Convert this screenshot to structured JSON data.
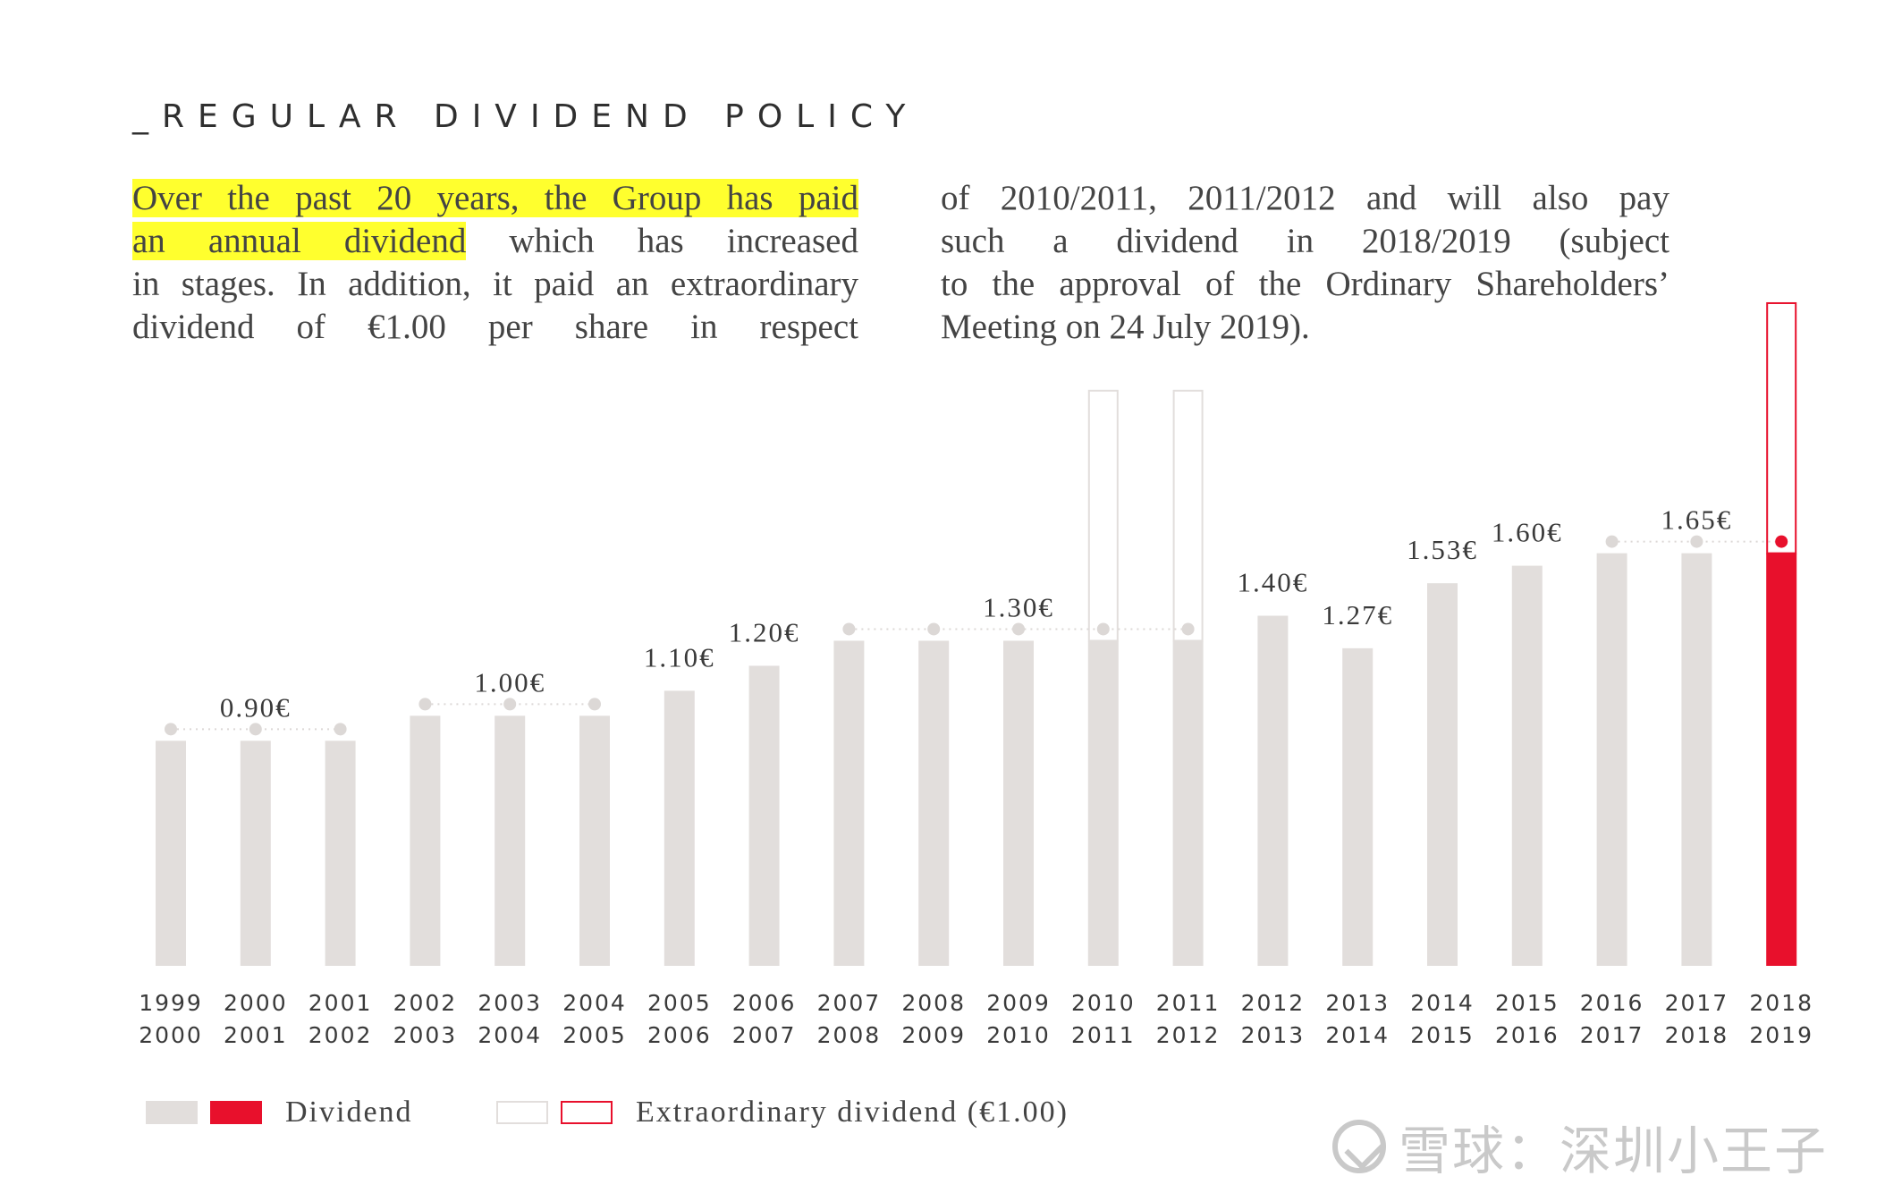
{
  "title": "_REGULAR DIVIDEND POLICY",
  "intro": {
    "left_lines": [
      "Over the past 20 years, the Group has paid",
      "an annual dividend",
      " which has increased",
      "in stages. In addition, it paid an extraordinary",
      "dividend of €1.00 per share in respect"
    ],
    "right_lines": [
      "of 2010/2011, 2011/2012 and will also pay",
      "such a dividend in 2018/2019 (subject",
      "to the approval of the Ordinary Shareholders’",
      "Meeting on 24 July 2019)."
    ]
  },
  "chart_data": {
    "type": "bar",
    "categories": [
      "1999 2000",
      "2000 2001",
      "2001 2002",
      "2002 2003",
      "2003 2004",
      "2004 2005",
      "2005 2006",
      "2006 2007",
      "2007 2008",
      "2008 2009",
      "2009 2010",
      "2010 2011",
      "2011 2012",
      "2012 2013",
      "2013 2014",
      "2014 2015",
      "2015 2016",
      "2016 2017",
      "2017 2018",
      "2018 2019"
    ],
    "category_lines": [
      [
        "1999",
        "2000"
      ],
      [
        "2000",
        "2001"
      ],
      [
        "2001",
        "2002"
      ],
      [
        "2002",
        "2003"
      ],
      [
        "2003",
        "2004"
      ],
      [
        "2004",
        "2005"
      ],
      [
        "2005",
        "2006"
      ],
      [
        "2006",
        "2007"
      ],
      [
        "2007",
        "2008"
      ],
      [
        "2008",
        "2009"
      ],
      [
        "2009",
        "2010"
      ],
      [
        "2010",
        "2011"
      ],
      [
        "2011",
        "2012"
      ],
      [
        "2012",
        "2013"
      ],
      [
        "2013",
        "2014"
      ],
      [
        "2014",
        "2015"
      ],
      [
        "2015",
        "2016"
      ],
      [
        "2016",
        "2017"
      ],
      [
        "2017",
        "2018"
      ],
      [
        "2018",
        "2019"
      ]
    ],
    "series": [
      {
        "name": "Dividend",
        "values": [
          0.9,
          0.9,
          0.9,
          1.0,
          1.0,
          1.0,
          1.1,
          1.2,
          1.3,
          1.3,
          1.3,
          1.3,
          1.3,
          1.4,
          1.27,
          1.53,
          1.6,
          1.65,
          1.65,
          1.65
        ]
      },
      {
        "name": "Extraordinary dividend (€1.00)",
        "values": [
          0,
          0,
          0,
          0,
          0,
          0,
          0,
          0,
          0,
          0,
          0,
          1.0,
          1.0,
          0,
          0,
          0,
          0,
          0,
          0,
          1.0
        ]
      }
    ],
    "value_labels": [
      {
        "text": "0.90€",
        "group": [
          0,
          2
        ]
      },
      {
        "text": "1.00€",
        "group": [
          3,
          5
        ]
      },
      {
        "text": "1.10€",
        "group": [
          6,
          6
        ]
      },
      {
        "text": "1.20€",
        "group": [
          7,
          7
        ]
      },
      {
        "text": "1.30€",
        "group": [
          8,
          12
        ]
      },
      {
        "text": "1.40€",
        "group": [
          13,
          13
        ]
      },
      {
        "text": "1.27€",
        "group": [
          14,
          14
        ]
      },
      {
        "text": "1.53€",
        "group": [
          15,
          15
        ]
      },
      {
        "text": "1.60€",
        "group": [
          16,
          16
        ]
      },
      {
        "text": "1.65€",
        "group": [
          17,
          19
        ]
      }
    ],
    "highlight_index": 19,
    "ylim": [
      0,
      2.7
    ],
    "title": "",
    "xlabel": "",
    "ylabel": "",
    "grid": false,
    "legend": "bottom-left"
  },
  "legend": {
    "dividend_label": "Dividend",
    "extraordinary_label": "Extraordinary dividend (€1.00)"
  },
  "colors": {
    "bar": "#e2dedc",
    "highlight": "#e8102c",
    "dot": "#dcd8d6",
    "text": "#3a3a3a",
    "highlight_text": "#ffff2e"
  },
  "watermark": "雪球：深圳小王子"
}
